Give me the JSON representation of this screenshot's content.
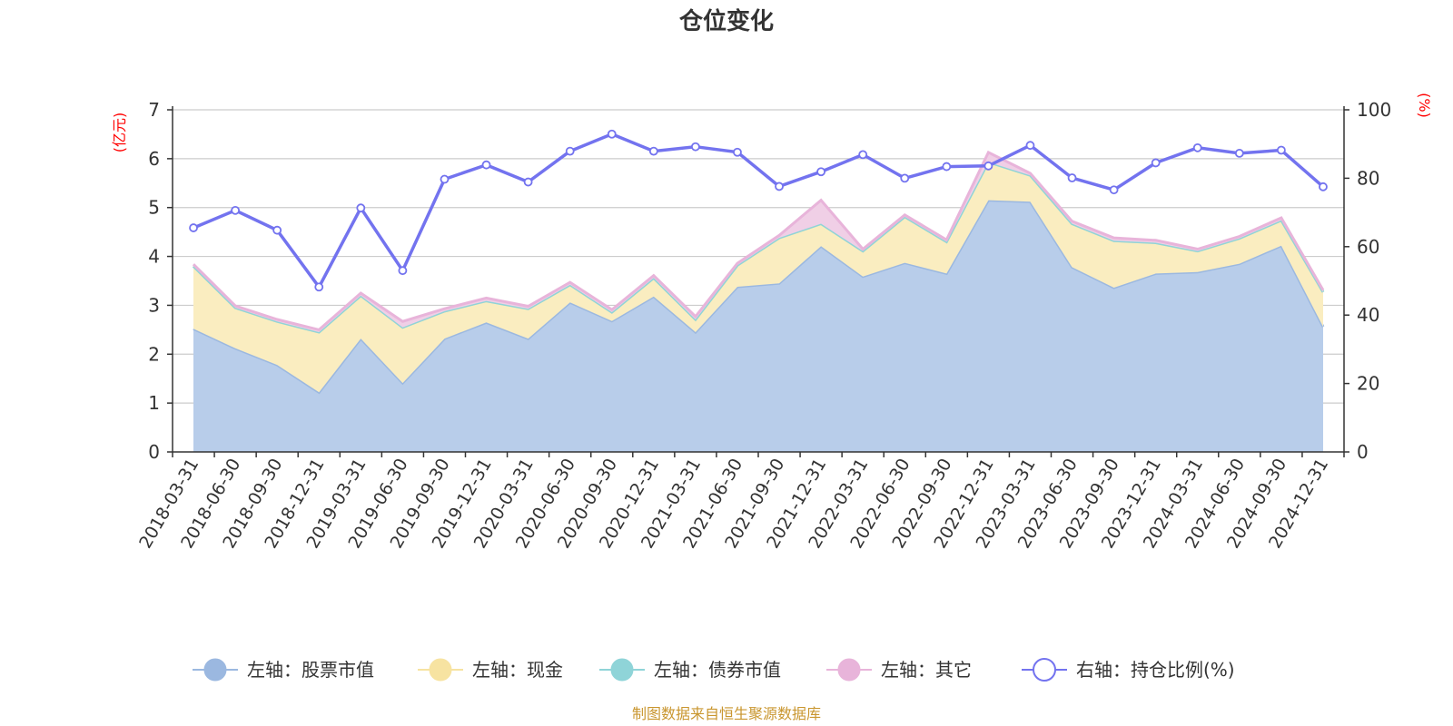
{
  "chart_data": {
    "type": "area",
    "title": "仓位变化",
    "left_axis": {
      "unit": "(亿元)",
      "ylim": [
        0,
        7
      ],
      "ticks": [
        0,
        1,
        2,
        3,
        4,
        5,
        6,
        7
      ]
    },
    "right_axis": {
      "unit": "(%)",
      "ylim": [
        0,
        100
      ],
      "ticks": [
        0,
        20,
        40,
        60,
        80,
        100
      ]
    },
    "categories": [
      "2018-03-31",
      "2018-06-30",
      "2018-09-30",
      "2018-12-31",
      "2019-03-31",
      "2019-06-30",
      "2019-09-30",
      "2019-12-31",
      "2020-03-31",
      "2020-06-30",
      "2020-09-30",
      "2020-12-31",
      "2021-03-31",
      "2021-06-30",
      "2021-09-30",
      "2021-12-31",
      "2022-03-31",
      "2022-06-30",
      "2022-09-30",
      "2022-12-31",
      "2023-03-31",
      "2023-06-30",
      "2023-09-30",
      "2023-12-31",
      "2024-03-31",
      "2024-06-30",
      "2024-09-30",
      "2024-12-31"
    ],
    "series": [
      {
        "name": "左轴：股票市值",
        "axis": "left",
        "type": "area",
        "color": "#9bb8e0",
        "fill": "#b8cdea",
        "values": [
          2.52,
          2.12,
          1.78,
          1.22,
          2.32,
          1.41,
          2.32,
          2.65,
          2.32,
          3.06,
          2.68,
          3.18,
          2.45,
          3.38,
          3.45,
          4.21,
          3.59,
          3.87,
          3.65,
          5.15,
          5.12,
          3.78,
          3.36,
          3.65,
          3.68,
          3.85,
          4.22,
          2.56
        ]
      },
      {
        "name": "左轴：现金",
        "axis": "left",
        "type": "area",
        "color": "#f7e3a1",
        "fill": "#faedc0",
        "values": [
          1.28,
          0.83,
          0.89,
          1.23,
          0.88,
          1.14,
          0.56,
          0.44,
          0.61,
          0.36,
          0.18,
          0.38,
          0.26,
          0.44,
          0.93,
          0.46,
          0.52,
          0.94,
          0.65,
          0.78,
          0.54,
          0.89,
          0.96,
          0.63,
          0.43,
          0.52,
          0.52,
          0.71
        ]
      },
      {
        "name": "左轴：债券市值",
        "axis": "left",
        "type": "area",
        "color": "#8fd4d8",
        "fill": "#a8dfe2",
        "values": [
          0,
          0,
          0,
          0,
          0,
          0,
          0,
          0,
          0,
          0,
          0,
          0,
          0,
          0,
          0,
          0,
          0,
          0,
          0,
          0,
          0,
          0,
          0,
          0,
          0,
          0,
          0,
          0
        ]
      },
      {
        "name": "左轴：其它",
        "axis": "left",
        "type": "area",
        "color": "#e8b4da",
        "fill": "#f0cfe6",
        "values": [
          0.04,
          0.04,
          0.04,
          0.05,
          0.05,
          0.12,
          0.05,
          0.06,
          0.05,
          0.05,
          0.05,
          0.05,
          0.06,
          0.04,
          0.05,
          0.48,
          0.04,
          0.04,
          0.04,
          0.2,
          0.04,
          0.05,
          0.06,
          0.05,
          0.04,
          0.04,
          0.05,
          0.04
        ]
      },
      {
        "name": "右轴：持仓比例(%)",
        "axis": "right",
        "type": "line",
        "color": "#7373ef",
        "values": [
          65.5,
          70.6,
          64.8,
          48.2,
          71.3,
          53.0,
          79.7,
          83.9,
          78.9,
          87.9,
          92.9,
          87.9,
          89.2,
          87.6,
          77.6,
          81.9,
          86.9,
          80.0,
          83.4,
          83.6,
          89.6,
          80.1,
          76.6,
          84.5,
          88.9,
          87.3,
          88.2,
          77.5
        ]
      }
    ],
    "source_note": "制图数据来自恒生聚源数据库"
  }
}
